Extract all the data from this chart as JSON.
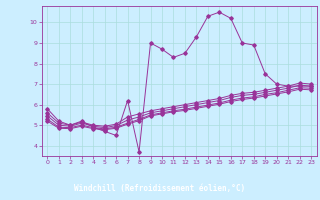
{
  "xlabel": "Windchill (Refroidissement éolien,°C)",
  "bg_color": "#cceeff",
  "grid_color": "#aadddd",
  "line_color": "#993399",
  "xlabel_bg": "#330066",
  "xlabel_fg": "#ffffff",
  "x": [
    0,
    1,
    2,
    3,
    4,
    5,
    6,
    7,
    8,
    9,
    10,
    11,
    12,
    13,
    14,
    15,
    16,
    17,
    18,
    19,
    20,
    21,
    22,
    23
  ],
  "series1": [
    5.8,
    5.2,
    5.0,
    5.2,
    4.9,
    4.7,
    4.5,
    6.2,
    3.7,
    9.0,
    8.7,
    8.3,
    8.5,
    9.3,
    10.3,
    10.5,
    10.2,
    9.0,
    8.9,
    7.5,
    7.0,
    6.9,
    6.9,
    6.9
  ],
  "series2": [
    5.6,
    5.1,
    5.0,
    5.15,
    5.0,
    4.95,
    5.05,
    5.4,
    5.55,
    5.7,
    5.8,
    5.9,
    6.0,
    6.1,
    6.2,
    6.3,
    6.45,
    6.55,
    6.6,
    6.7,
    6.8,
    6.9,
    7.05,
    7.0
  ],
  "series3": [
    5.45,
    5.0,
    4.95,
    5.1,
    4.95,
    4.88,
    4.98,
    5.25,
    5.4,
    5.6,
    5.7,
    5.8,
    5.9,
    6.0,
    6.1,
    6.2,
    6.35,
    6.45,
    6.5,
    6.6,
    6.7,
    6.8,
    6.95,
    6.9
  ],
  "series4": [
    5.3,
    4.9,
    4.88,
    5.0,
    4.88,
    4.82,
    4.9,
    5.1,
    5.28,
    5.5,
    5.6,
    5.7,
    5.78,
    5.88,
    5.98,
    6.08,
    6.22,
    6.32,
    6.38,
    6.5,
    6.58,
    6.7,
    6.82,
    6.8
  ],
  "series5": [
    5.2,
    4.85,
    4.83,
    4.95,
    4.83,
    4.78,
    4.85,
    5.05,
    5.22,
    5.45,
    5.55,
    5.65,
    5.72,
    5.82,
    5.92,
    6.02,
    6.15,
    6.25,
    6.32,
    6.42,
    6.52,
    6.62,
    6.75,
    6.72
  ],
  "ylim": [
    3.5,
    10.8
  ],
  "xlim": [
    -0.5,
    23.5
  ],
  "yticks": [
    4,
    5,
    6,
    7,
    8,
    9,
    10
  ],
  "xticks": [
    0,
    1,
    2,
    3,
    4,
    5,
    6,
    7,
    8,
    9,
    10,
    11,
    12,
    13,
    14,
    15,
    16,
    17,
    18,
    19,
    20,
    21,
    22,
    23
  ]
}
